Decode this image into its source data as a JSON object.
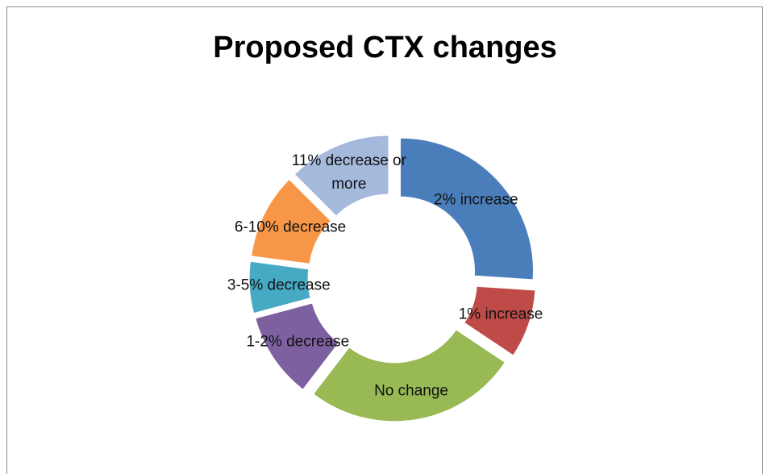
{
  "chart_data": {
    "type": "doughnut",
    "title": "Proposed CTX changes",
    "categories": [
      "2% increase",
      "1% increase",
      "No change",
      "1-2% decrease",
      "3-5% decrease",
      "6-10% decrease",
      "11% decrease or more"
    ],
    "values": [
      25,
      8,
      25,
      10,
      6,
      10,
      12
    ],
    "colors": [
      "#4a7ebb",
      "#be4b48",
      "#98b954",
      "#7d60a0",
      "#46aac5",
      "#f79646",
      "#a5b9dc"
    ]
  }
}
